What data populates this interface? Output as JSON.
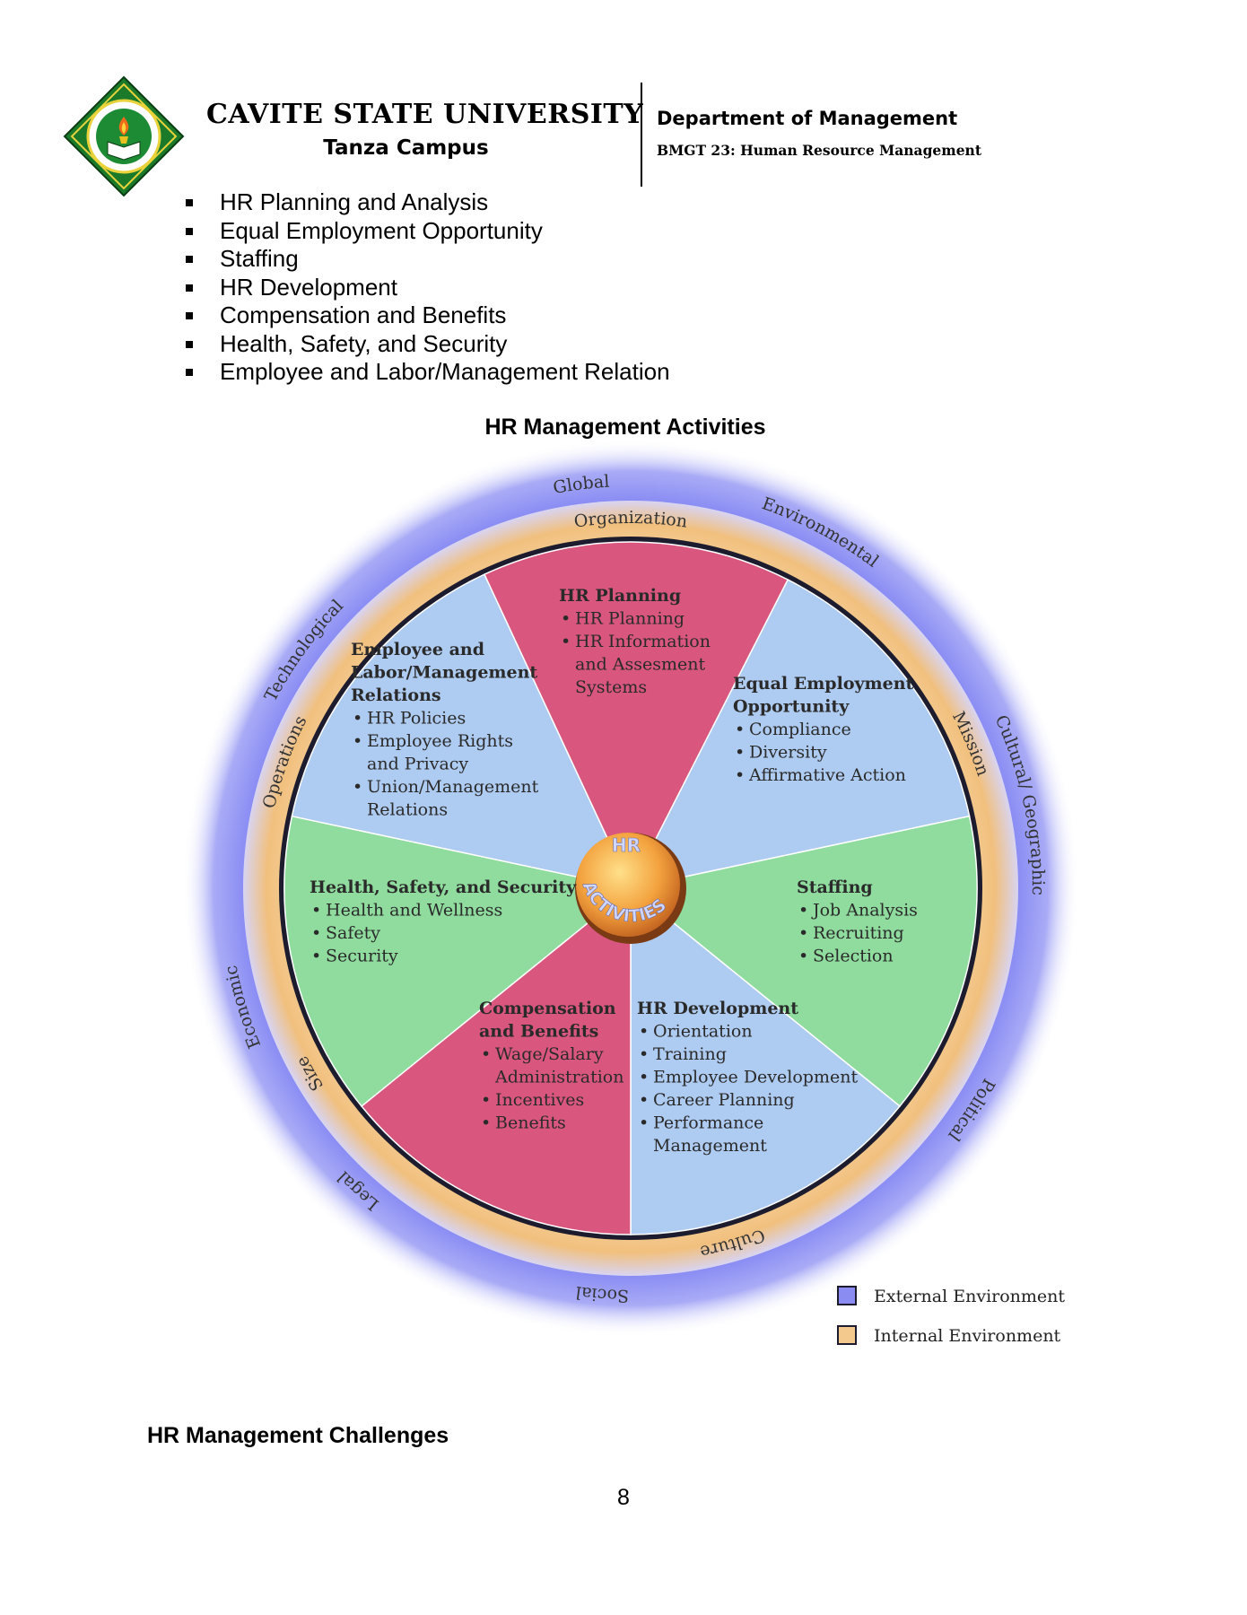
{
  "header": {
    "university": "CAVITE STATE UNIVERSITY",
    "campus": "Tanza Campus",
    "department": "Department of Management",
    "course": "BMGT 23: Human Resource Management"
  },
  "bullets": [
    "HR Planning and Analysis",
    "Equal Employment Opportunity",
    "Staffing",
    "HR Development",
    "Compensation and Benefits",
    "Health, Safety, and Security",
    "Employee and Labor/Management Relation"
  ],
  "diagram": {
    "title": "HR Management Activities",
    "center": {
      "line1": "HR",
      "line2": "ACTIVITIES"
    },
    "external_labels": [
      "Global",
      "Environmental",
      "Cultural/ Geographic",
      "Political",
      "Social",
      "Legal",
      "Economic",
      "Technological"
    ],
    "internal_labels": [
      "Organization",
      "Mission",
      "Culture",
      "Size",
      "Operations"
    ],
    "segments": {
      "hr_planning": {
        "title": [
          "HR Planning"
        ],
        "items": [
          [
            "HR Planning"
          ],
          [
            "HR Information",
            "and Assesment",
            "Systems"
          ]
        ]
      },
      "eeo": {
        "title": [
          "Equal Employment",
          "Opportunity"
        ],
        "items": [
          [
            "Compliance"
          ],
          [
            "Diversity"
          ],
          [
            "Affirmative Action"
          ]
        ]
      },
      "staffing": {
        "title": [
          "Staffing"
        ],
        "items": [
          [
            "Job Analysis"
          ],
          [
            "Recruiting"
          ],
          [
            "Selection"
          ]
        ]
      },
      "hr_development": {
        "title": [
          "HR Development"
        ],
        "items": [
          [
            "Orientation"
          ],
          [
            "Training"
          ],
          [
            "Employee Development"
          ],
          [
            "Career Planning"
          ],
          [
            "Performance",
            "Management"
          ]
        ]
      },
      "compensation": {
        "title": [
          "Compensation",
          "and Benefits"
        ],
        "items": [
          [
            "Wage/Salary",
            "Administration"
          ],
          [
            "Incentives"
          ],
          [
            "Benefits"
          ]
        ]
      },
      "health_safety": {
        "title": [
          "Health, Safety, and Security"
        ],
        "items": [
          [
            "Health and Wellness"
          ],
          [
            "Safety"
          ],
          [
            "Security"
          ]
        ]
      },
      "employee_relations": {
        "title": [
          "Employee and",
          "Labor/Management",
          "Relations"
        ],
        "items": [
          [
            "HR Policies"
          ],
          [
            "Employee Rights",
            "and Privacy"
          ],
          [
            "Union/Management",
            "Relations"
          ]
        ]
      }
    },
    "legend": {
      "external": "External Environment",
      "internal": "Internal Environment"
    },
    "colors": {
      "pink": "#d9577f",
      "blue": "#aecbf1",
      "green": "#8fdc9e",
      "outer_ring": "#8a8cf2",
      "inner_ring": "#f3c98e",
      "rim": "#1c1c2e"
    }
  },
  "section": {
    "challenges_title": "HR Management Challenges"
  },
  "page_number": "8"
}
